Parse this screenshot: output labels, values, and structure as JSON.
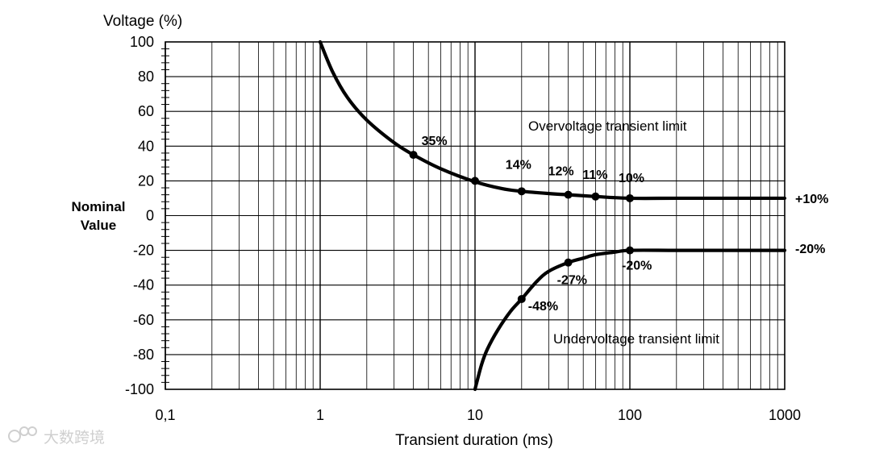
{
  "chart_data": {
    "type": "line",
    "ylabel": "Voltage (%)",
    "xlabel": "Transient duration (ms)",
    "x_scale": "log",
    "xlim": [
      0.1,
      1000
    ],
    "ylim": [
      -100,
      100
    ],
    "grid": true,
    "x_ticks": [
      0.1,
      1,
      10,
      100,
      1000
    ],
    "x_tick_labels": [
      "0,1",
      "1",
      "10",
      "100",
      "1000"
    ],
    "y_ticks": [
      100,
      80,
      60,
      40,
      20,
      0,
      -20,
      -40,
      -60,
      -80,
      -100
    ],
    "y_tick_labels": [
      "100",
      "80",
      "60",
      "40",
      "20",
      "0",
      "-20",
      "-40",
      "-60",
      "-80",
      "-100"
    ],
    "nominal_label_line1": "Nominal",
    "nominal_label_line2": "Value",
    "series": [
      {
        "region_label": "Overvoltage transient limit",
        "end_label": "+10%",
        "x": [
          1,
          1.2,
          1.5,
          2,
          3,
          4,
          6,
          10,
          15,
          20,
          30,
          40,
          60,
          100,
          200,
          500,
          1000
        ],
        "y": [
          100,
          83,
          68,
          55,
          42,
          35,
          27,
          19.5,
          15.5,
          14,
          12.7,
          12,
          11,
          10,
          10,
          10,
          10
        ],
        "markers": [
          {
            "x": 4,
            "y": 35,
            "label": "35%"
          },
          {
            "x": 10,
            "y": 20,
            "label": ""
          },
          {
            "x": 20,
            "y": 14,
            "label": "14%"
          },
          {
            "x": 40,
            "y": 12,
            "label": "12%"
          },
          {
            "x": 60,
            "y": 11,
            "label": "11%"
          },
          {
            "x": 100,
            "y": 10,
            "label": "10%"
          }
        ]
      },
      {
        "region_label": "Undervoltage transient limit",
        "end_label": "-20%",
        "x": [
          10,
          11,
          12,
          14,
          17,
          20,
          25,
          30,
          40,
          50,
          60,
          80,
          100,
          200,
          500,
          1000
        ],
        "y": [
          -100,
          -86,
          -77,
          -66,
          -55,
          -48,
          -38,
          -32,
          -27,
          -24.5,
          -22.5,
          -21,
          -20,
          -20,
          -20,
          -20
        ],
        "markers": [
          {
            "x": 20,
            "y": -48,
            "label": "-48%"
          },
          {
            "x": 40,
            "y": -27,
            "label": "-27%"
          },
          {
            "x": 100,
            "y": -20,
            "label": "-20%"
          }
        ]
      }
    ]
  },
  "watermark_text": "大数跨境"
}
